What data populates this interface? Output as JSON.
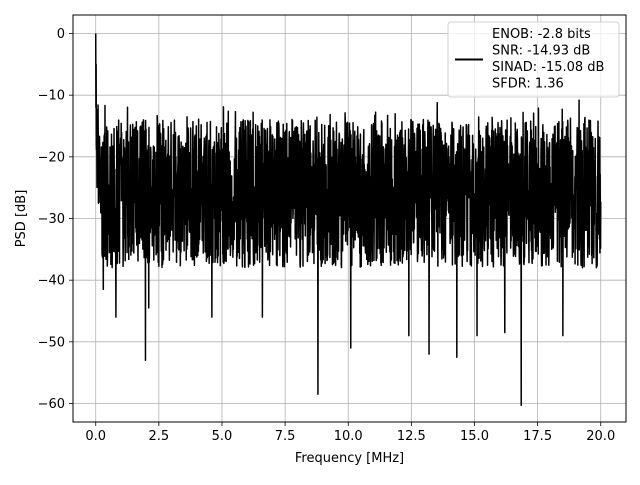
{
  "chart_data": {
    "type": "line",
    "title": "",
    "xlabel": "Frequency [MHz]",
    "ylabel": "PSD [dB]",
    "xlim": [
      -0.9,
      21.0
    ],
    "ylim": [
      -63.0,
      3.0
    ],
    "xticks": [
      0.0,
      2.5,
      5.0,
      7.5,
      10.0,
      12.5,
      15.0,
      17.5,
      20.0
    ],
    "xtick_labels": [
      "0.0",
      "2.5",
      "5.0",
      "7.5",
      "10.0",
      "12.5",
      "15.0",
      "17.5",
      "20.0"
    ],
    "yticks": [
      0,
      -10,
      -20,
      -30,
      -40,
      -50,
      -60
    ],
    "ytick_labels": [
      "0",
      "−10",
      "−20",
      "−30",
      "−40",
      "−50",
      "−60"
    ],
    "grid": true,
    "legend_position": "top-right",
    "series": [
      {
        "color": "#000000",
        "x_range": [
          0.0,
          20.0
        ],
        "peak": {
          "x": 0.0,
          "y": 0.0
        },
        "noise_floor_center": -26,
        "noise_floor_band": [
          -38,
          -14
        ],
        "notable_dips": [
          {
            "x": 0.3,
            "y": -41.5
          },
          {
            "x": 0.8,
            "y": -46.0
          },
          {
            "x": 1.97,
            "y": -53.0
          },
          {
            "x": 2.1,
            "y": -44.5
          },
          {
            "x": 4.6,
            "y": -46.0
          },
          {
            "x": 6.6,
            "y": -46.0
          },
          {
            "x": 8.8,
            "y": -58.5
          },
          {
            "x": 10.1,
            "y": -51.0
          },
          {
            "x": 12.4,
            "y": -49.0
          },
          {
            "x": 13.2,
            "y": -52.0
          },
          {
            "x": 14.3,
            "y": -52.5
          },
          {
            "x": 15.1,
            "y": -49.0
          },
          {
            "x": 16.2,
            "y": -48.5
          },
          {
            "x": 16.85,
            "y": -60.3
          },
          {
            "x": 18.5,
            "y": -49.0
          }
        ]
      }
    ],
    "legend": {
      "lines": [
        "ENOB: -2.8 bits",
        "SNR: -14.93 dB",
        "SINAD: -15.08 dB",
        "SFDR: 1.36"
      ]
    }
  }
}
